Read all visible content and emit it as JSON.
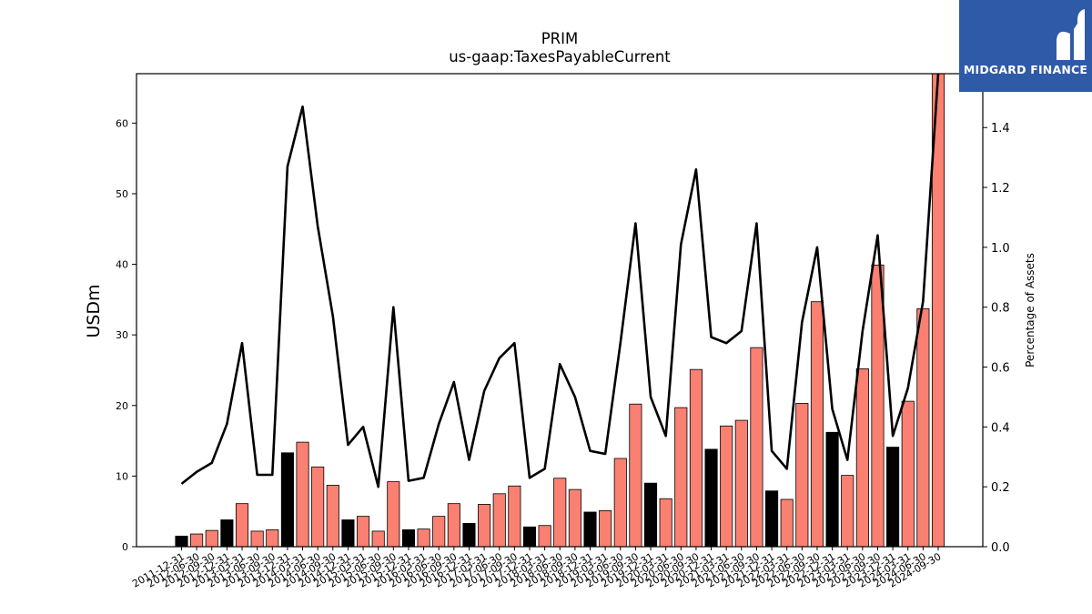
{
  "logo": {
    "text": "MIDGARD FINANCE",
    "icon": "midgard-m-logo-icon",
    "bg": "#2f5aa8"
  },
  "chart_data": {
    "type": "bar",
    "title": "PRIM",
    "subtitle": "us-gaap:TaxesPayableCurrent",
    "ylabel": "USDm",
    "y2label": "Percentage of Assets",
    "ylim": [
      0,
      67
    ],
    "y2lim": [
      0,
      1.58
    ],
    "yticks": [
      "0",
      "10",
      "20",
      "30",
      "40",
      "50",
      "60"
    ],
    "y2ticks": [
      "0.0",
      "0.2",
      "0.4",
      "0.6",
      "0.8",
      "1.0",
      "1.2",
      "1.4"
    ],
    "colors": {
      "fy_bar": "#000000",
      "quarter_bar": "#fa8072",
      "line": "#000000"
    },
    "categories": [
      "2011-12-31",
      "2012-06-30",
      "2012-09-30",
      "2012-12-31",
      "2013-03-31",
      "2013-06-30",
      "2013-09-30",
      "2013-12-31",
      "2014-03-31",
      "2014-06-30",
      "2014-09-30",
      "2014-12-31",
      "2015-03-31",
      "2015-06-30",
      "2015-09-30",
      "2015-12-31",
      "2016-03-31",
      "2016-06-30",
      "2016-09-30",
      "2016-12-31",
      "2017-03-31",
      "2017-06-30",
      "2017-09-30",
      "2017-12-31",
      "2018-03-31",
      "2018-06-30",
      "2018-09-30",
      "2018-12-31",
      "2019-03-31",
      "2019-06-30",
      "2019-09-30",
      "2019-12-31",
      "2020-03-31",
      "2020-06-30",
      "2020-09-30",
      "2020-12-31",
      "2021-03-31",
      "2021-06-30",
      "2021-09-30",
      "2021-12-31",
      "2022-03-31",
      "2022-06-30",
      "2022-09-30",
      "2022-12-31",
      "2023-03-31",
      "2023-06-30",
      "2023-09-30",
      "2023-12-31",
      "2024-03-31",
      "2024-06-30",
      "2024-09-30"
    ],
    "values": [
      1.5,
      1.8,
      2.3,
      3.8,
      6.1,
      2.2,
      2.4,
      13.3,
      14.8,
      11.3,
      8.7,
      3.8,
      4.3,
      2.2,
      9.2,
      2.4,
      2.5,
      4.3,
      6.1,
      3.3,
      6.0,
      7.5,
      8.6,
      2.8,
      3.0,
      9.7,
      8.1,
      4.9,
      5.1,
      12.5,
      20.2,
      9.0,
      6.8,
      19.7,
      25.1,
      13.8,
      17.1,
      17.9,
      28.2,
      7.9,
      6.7,
      20.3,
      34.7,
      16.2,
      10.1,
      25.2,
      39.9,
      14.1,
      20.6,
      33.7,
      67.0
    ],
    "fiscal_year_end": [
      true,
      false,
      false,
      true,
      false,
      false,
      false,
      true,
      false,
      false,
      false,
      true,
      false,
      false,
      false,
      true,
      false,
      false,
      false,
      true,
      false,
      false,
      false,
      true,
      false,
      false,
      false,
      true,
      false,
      false,
      false,
      true,
      false,
      false,
      false,
      true,
      false,
      false,
      false,
      true,
      false,
      false,
      false,
      true,
      false,
      false,
      false,
      true,
      false,
      false,
      false
    ],
    "pct_assets": [
      0.21,
      0.25,
      0.28,
      0.41,
      0.68,
      0.24,
      0.24,
      1.27,
      1.47,
      1.07,
      0.77,
      0.34,
      0.4,
      0.2,
      0.8,
      0.22,
      0.23,
      0.41,
      0.55,
      0.29,
      0.52,
      0.63,
      0.68,
      0.23,
      0.26,
      0.61,
      0.5,
      0.32,
      0.31,
      0.68,
      1.08,
      0.5,
      0.37,
      1.01,
      1.26,
      0.7,
      0.68,
      0.72,
      1.08,
      0.32,
      0.26,
      0.75,
      1.0,
      0.46,
      0.29,
      0.72,
      1.04,
      0.37,
      0.53,
      0.82,
      1.58
    ]
  }
}
